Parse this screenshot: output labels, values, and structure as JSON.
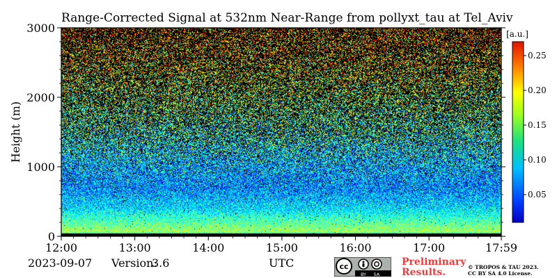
{
  "chart_data": {
    "type": "heatmap",
    "title": "Range-Corrected Signal at 532nm Near-Range from pollyxt_tau at Tel_Aviv",
    "xlabel": "UTC",
    "ylabel": "Height (m)",
    "x_ticks": [
      "12:00",
      "13:00",
      "14:00",
      "15:00",
      "16:00",
      "17:00",
      "17:59"
    ],
    "x_range_hours": [
      12.0,
      17.983
    ],
    "y_ticks": [
      0,
      1000,
      2000,
      3000
    ],
    "ylim": [
      0,
      3000
    ],
    "colorbar": {
      "unit": "[a.u.]",
      "ticks": [
        0.05,
        0.1,
        0.15,
        0.2,
        0.25
      ],
      "tick_labels": [
        "0.05",
        "0.10",
        "0.15",
        "0.20",
        "0.25"
      ],
      "range": [
        0.01,
        0.27
      ],
      "colormap": "jet"
    },
    "mean_profile": [
      {
        "height": 0,
        "value": 0.0
      },
      {
        "height": 60,
        "value": 0.15
      },
      {
        "height": 200,
        "value": 0.13
      },
      {
        "height": 400,
        "value": 0.1
      },
      {
        "height": 700,
        "value": 0.08
      },
      {
        "height": 1000,
        "value": 0.09
      },
      {
        "height": 1500,
        "value": 0.12
      },
      {
        "height": 2000,
        "value": 0.15
      },
      {
        "height": 2500,
        "value": 0.18
      },
      {
        "height": 3000,
        "value": 0.2
      }
    ],
    "no_signal_fraction_profile": [
      {
        "height": 0,
        "value": 0.0
      },
      {
        "height": 500,
        "value": 0.02
      },
      {
        "height": 1000,
        "value": 0.15
      },
      {
        "height": 1500,
        "value": 0.42
      },
      {
        "height": 2000,
        "value": 0.55
      },
      {
        "height": 3000,
        "value": 0.65
      }
    ]
  },
  "footer": {
    "date": "2023-09-07",
    "version_label": "Version:",
    "version_value": "3.6",
    "preliminary": "Preliminary Results.",
    "copyright_line1": "© TROPOS & TAU 2023.",
    "copyright_line2": "CC BY SA 4.0 License.",
    "license_badge": {
      "text_by": "BY",
      "text_sa": "SA"
    }
  },
  "colors": {
    "no_signal": "#000000",
    "prelim_text": "#ef3b3b"
  }
}
